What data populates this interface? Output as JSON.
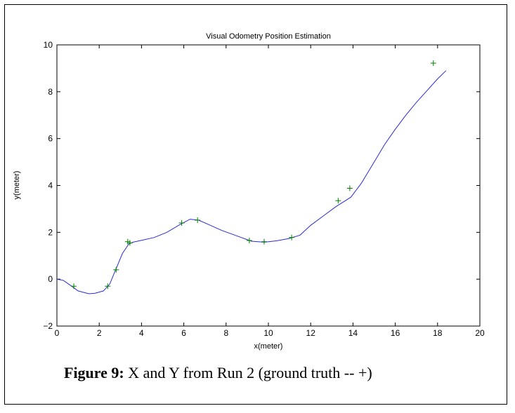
{
  "caption": {
    "label": "Figure 9:",
    "text": " X and Y from Run 2 (ground truth -- +)"
  },
  "chart_data": {
    "type": "line",
    "title": "Visual Odometry Position Estimation",
    "xlabel": "x(meter)",
    "ylabel": "y(meter)",
    "xlim": [
      0,
      20
    ],
    "ylim": [
      -2,
      10
    ],
    "x_ticks": [
      0,
      2,
      4,
      6,
      8,
      10,
      12,
      14,
      16,
      18,
      20
    ],
    "y_ticks": [
      -2,
      0,
      2,
      4,
      6,
      8,
      10
    ],
    "grid": false,
    "colors": {
      "estimate": "#2b2bd8",
      "ground_truth": "#008000"
    },
    "series": [
      {
        "marker": "line",
        "x": [
          0,
          0.3,
          0.7,
          1.0,
          1.5,
          1.8,
          2.2,
          2.5,
          2.8,
          3.1,
          3.4,
          3.6,
          4.0,
          4.6,
          5.2,
          5.8,
          6.3,
          6.7,
          7.2,
          7.8,
          8.5,
          9.2,
          9.8,
          10.4,
          11.0,
          11.5,
          12.0,
          12.6,
          13.2,
          13.9,
          14.4,
          15.0,
          15.5,
          16.0,
          16.5,
          17.0,
          17.5,
          18.0,
          18.4
        ],
        "y": [
          0,
          -0.05,
          -0.3,
          -0.5,
          -0.62,
          -0.6,
          -0.5,
          -0.2,
          0.45,
          1.1,
          1.5,
          1.58,
          1.66,
          1.78,
          2.0,
          2.32,
          2.56,
          2.52,
          2.32,
          2.08,
          1.85,
          1.62,
          1.58,
          1.64,
          1.74,
          1.88,
          2.3,
          2.7,
          3.1,
          3.5,
          4.1,
          5.0,
          5.75,
          6.4,
          7.0,
          7.55,
          8.05,
          8.55,
          8.9
        ]
      },
      {
        "marker": "+",
        "x": [
          0.8,
          2.4,
          2.8,
          3.35,
          3.45,
          5.9,
          6.65,
          9.1,
          9.8,
          11.1,
          13.3,
          13.85,
          17.8
        ],
        "y": [
          -0.3,
          -0.3,
          0.4,
          1.6,
          1.55,
          2.4,
          2.52,
          1.65,
          1.6,
          1.78,
          3.35,
          3.88,
          9.22
        ]
      }
    ]
  }
}
